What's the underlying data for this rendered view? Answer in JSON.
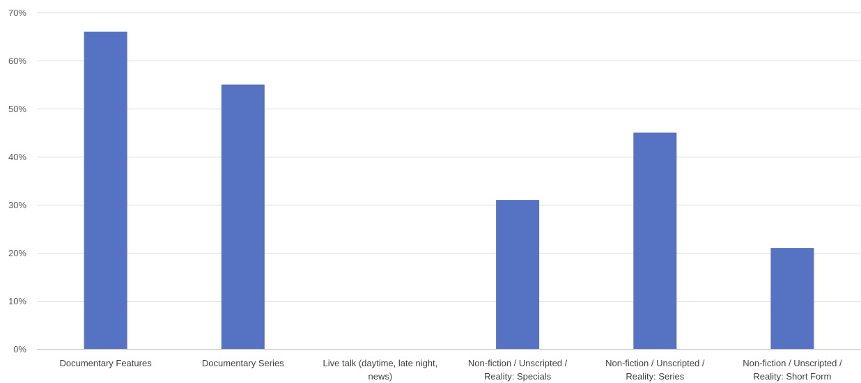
{
  "chart_data": {
    "type": "bar",
    "categories": [
      "Documentary Features",
      "Documentary Series",
      "Live talk (daytime, late night, news)",
      "Non-fiction / Unscripted / Reality: Specials",
      "Non-fiction / Unscripted / Reality: Series",
      "Non-fiction / Unscripted / Reality: Short Form"
    ],
    "category_lines": [
      [
        "Documentary Features"
      ],
      [
        "Documentary Series"
      ],
      [
        "Live talk (daytime, late night,",
        "news)"
      ],
      [
        "Non-fiction / Unscripted /",
        "Reality: Specials"
      ],
      [
        "Non-fiction / Unscripted /",
        "Reality: Series"
      ],
      [
        "Non-fiction / Unscripted /",
        "Reality: Short Form"
      ]
    ],
    "values": [
      66,
      55,
      0,
      31,
      45,
      21
    ],
    "ylim": [
      0,
      70
    ],
    "yticks": [
      0,
      10,
      20,
      30,
      40,
      50,
      60,
      70
    ],
    "ytick_labels": [
      "0%",
      "10%",
      "20%",
      "30%",
      "40%",
      "50%",
      "60%",
      "70%"
    ],
    "title": "",
    "xlabel": "",
    "ylabel": "",
    "grid": true,
    "legend": "none",
    "colors": {
      "bar": "#5672C2",
      "grid": "#D9D9D9",
      "axis": "#BFBFBF"
    }
  }
}
